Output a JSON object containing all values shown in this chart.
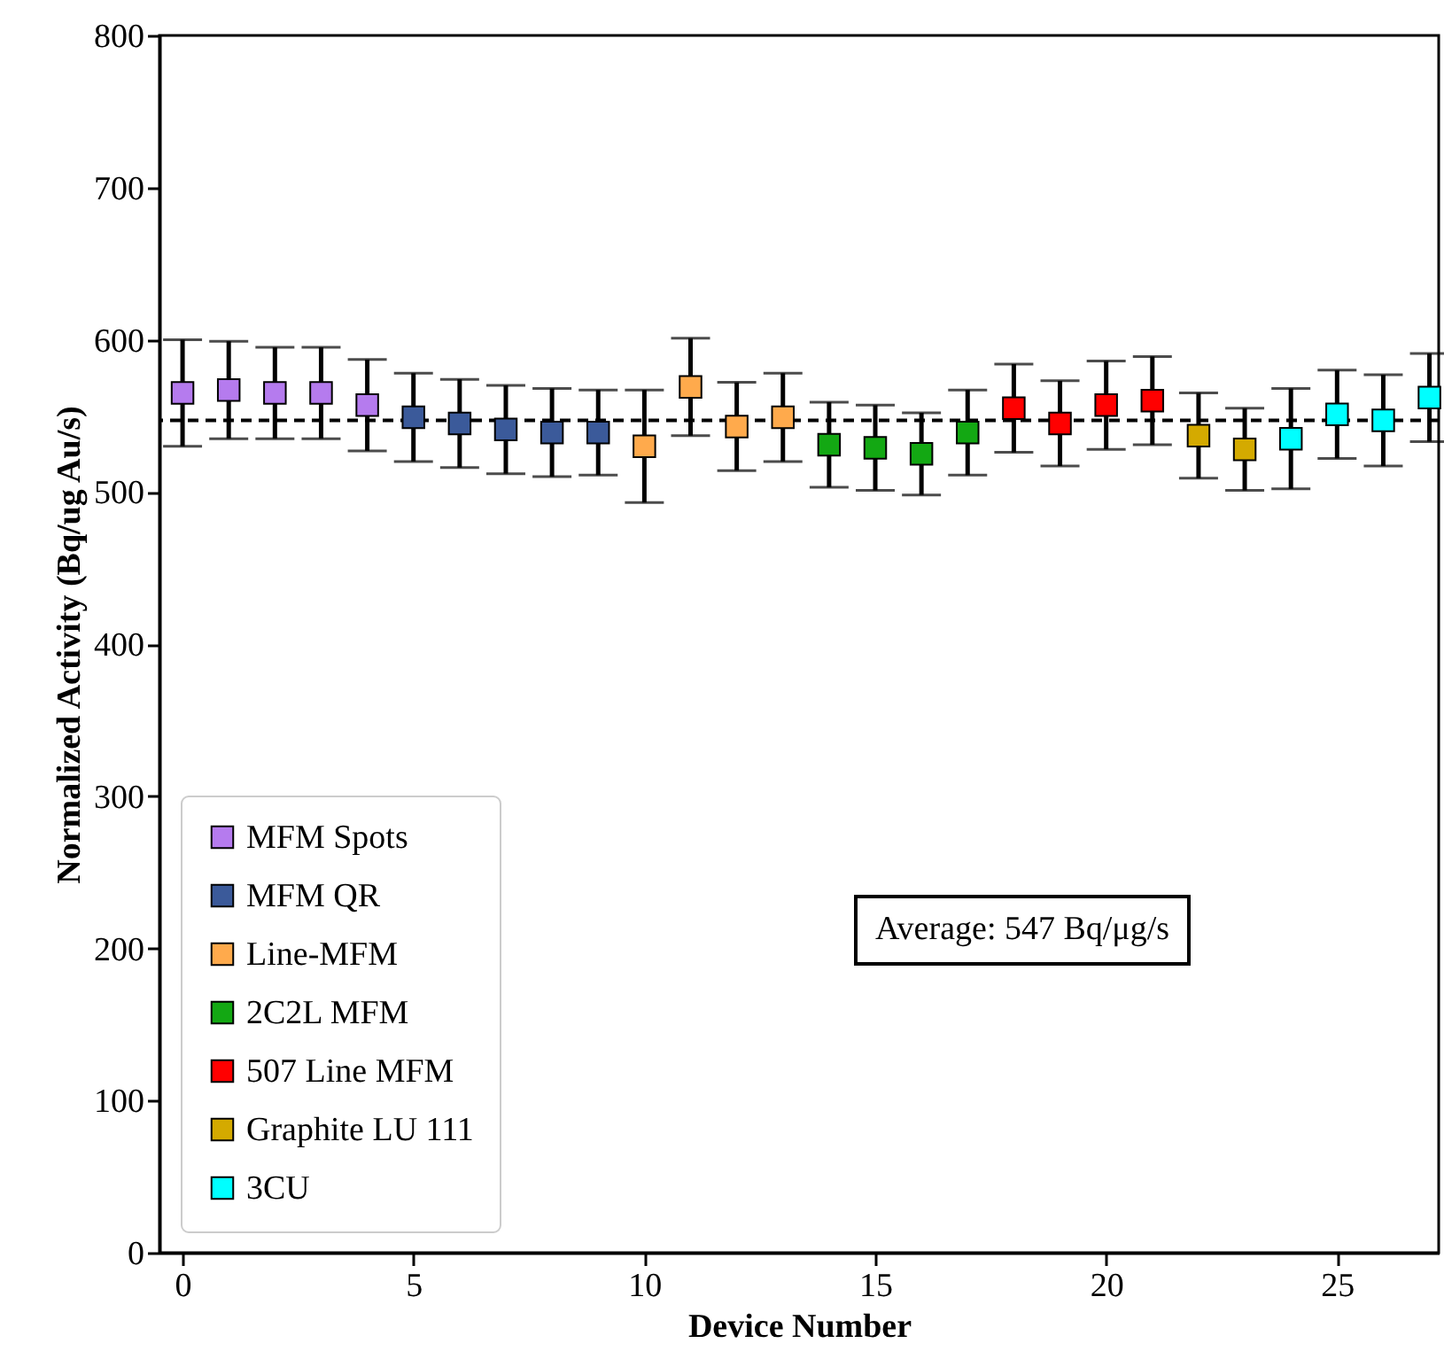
{
  "chart_data": {
    "type": "scatter",
    "xlabel": "Device Number",
    "ylabel": "Normalized Activity (Bq/ug Au/s)",
    "xlim": [
      -0.5,
      27.2
    ],
    "xticks": [
      0,
      5,
      10,
      15,
      20,
      25
    ],
    "ylim": [
      0,
      800
    ],
    "yticks": [
      0,
      100,
      200,
      300,
      400,
      500,
      600,
      700,
      800
    ],
    "marker": "square",
    "legend": "bottom left",
    "grid": false,
    "series": [
      {
        "name": "MFM Spots",
        "color": "#b57bee",
        "x": [
          0,
          1,
          2,
          3,
          4
        ],
        "values": [
          565,
          567,
          565,
          565,
          557
        ],
        "errors": [
          35,
          32,
          30,
          30,
          30
        ]
      },
      {
        "name": "MFM QR",
        "color": "#3b5a9a",
        "x": [
          5,
          6,
          7,
          8,
          9
        ],
        "values": [
          549,
          545,
          541,
          539,
          539
        ],
        "errors": [
          29,
          29,
          29,
          29,
          28
        ]
      },
      {
        "name": "Line-MFM",
        "color": "#ffaa4c",
        "x": [
          10,
          11,
          12,
          13
        ],
        "values": [
          530,
          569,
          543,
          549
        ],
        "errors": [
          37,
          32,
          29,
          29
        ]
      },
      {
        "name": "2C2L MFM",
        "color": "#13a813",
        "x": [
          14,
          15,
          16,
          17
        ],
        "values": [
          531,
          529,
          525,
          539
        ],
        "errors": [
          28,
          28,
          27,
          28
        ]
      },
      {
        "name": "507 Line MFM",
        "color": "#ff0000",
        "x": [
          18,
          19,
          20,
          21
        ],
        "values": [
          555,
          545,
          557,
          560
        ],
        "errors": [
          29,
          28,
          29,
          29
        ]
      },
      {
        "name": "Graphite LU 111",
        "color": "#d4aa00",
        "x": [
          22,
          23
        ],
        "values": [
          537,
          528
        ],
        "errors": [
          28,
          27
        ]
      },
      {
        "name": "3CU",
        "color": "#00ffff",
        "x": [
          24,
          25,
          26,
          27
        ],
        "values": [
          535,
          551,
          547,
          562
        ],
        "errors": [
          33,
          29,
          30,
          29
        ]
      }
    ],
    "ref_lines": [
      {
        "axis": "y",
        "value": 547,
        "line_style": "dashed",
        "color": "#000000"
      }
    ],
    "annotations": [
      "Average: 547 Bq/μg/s"
    ]
  }
}
